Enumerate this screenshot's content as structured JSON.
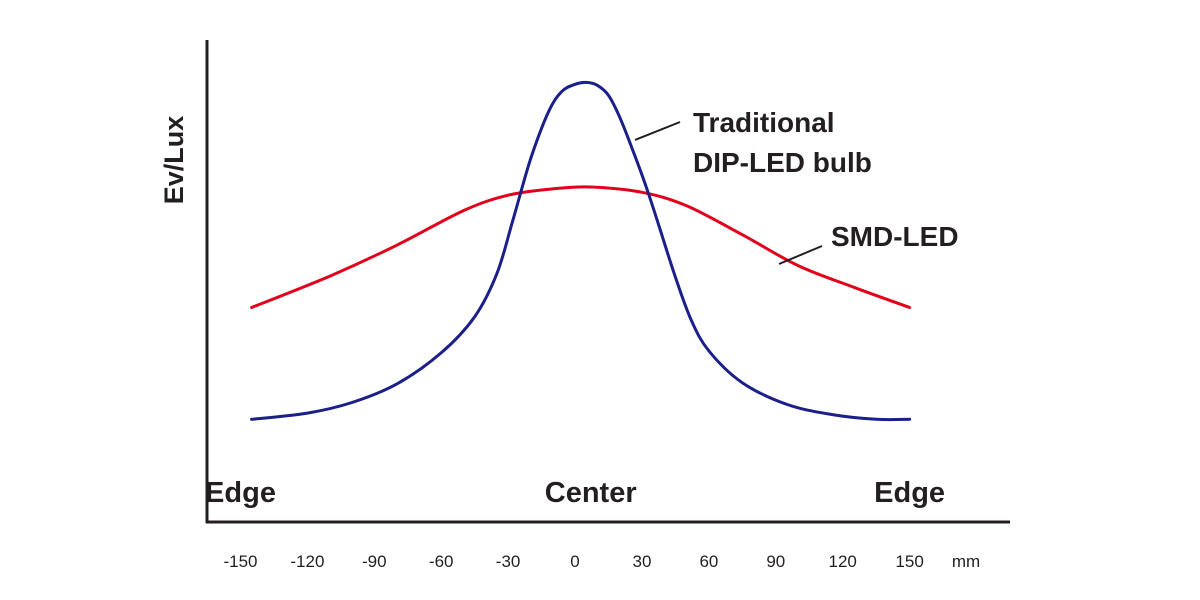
{
  "chart_data": {
    "type": "line",
    "title": "",
    "ylabel": "Ev/Lux",
    "xunit": "mm",
    "x_ticks": [
      -150,
      -120,
      -90,
      -60,
      -30,
      0,
      30,
      60,
      90,
      120,
      150
    ],
    "xlim": [
      -165,
      195
    ],
    "ylim": [
      0,
      100
    ],
    "grid": false,
    "region_labels": [
      {
        "text": "Edge",
        "x": -150
      },
      {
        "text": "Center",
        "x": 7
      },
      {
        "text": "Edge",
        "x": 150
      }
    ],
    "series": [
      {
        "name": "Traditional DIP-LED bulb",
        "color": "#1b1f8a",
        "x": [
          -145,
          -120,
          -100,
          -80,
          -60,
          -45,
          -35,
          -28,
          -20,
          -12,
          -6,
          0,
          5,
          10,
          15,
          20,
          26,
          32,
          38,
          45,
          52,
          60,
          75,
          95,
          115,
          135,
          150
        ],
        "y": [
          21.3,
          22.6,
          24.8,
          28.6,
          35.1,
          42.6,
          51.6,
          62.4,
          75.2,
          85.0,
          89.3,
          90.8,
          91.2,
          90.6,
          88.5,
          84.0,
          77.0,
          69.4,
          60.9,
          50.8,
          42.0,
          35.5,
          28.9,
          24.4,
          22.3,
          21.3,
          21.3
        ]
      },
      {
        "name": "SMD-LED",
        "color": "#e3001b",
        "x": [
          -145,
          -110,
          -80,
          -50,
          -30,
          -10,
          7,
          30,
          50,
          75,
          100,
          125,
          150
        ],
        "y": [
          44.5,
          51.0,
          57.4,
          64.6,
          67.8,
          69.1,
          69.5,
          68.4,
          65.6,
          59.6,
          53.2,
          48.7,
          44.5
        ]
      }
    ]
  }
}
